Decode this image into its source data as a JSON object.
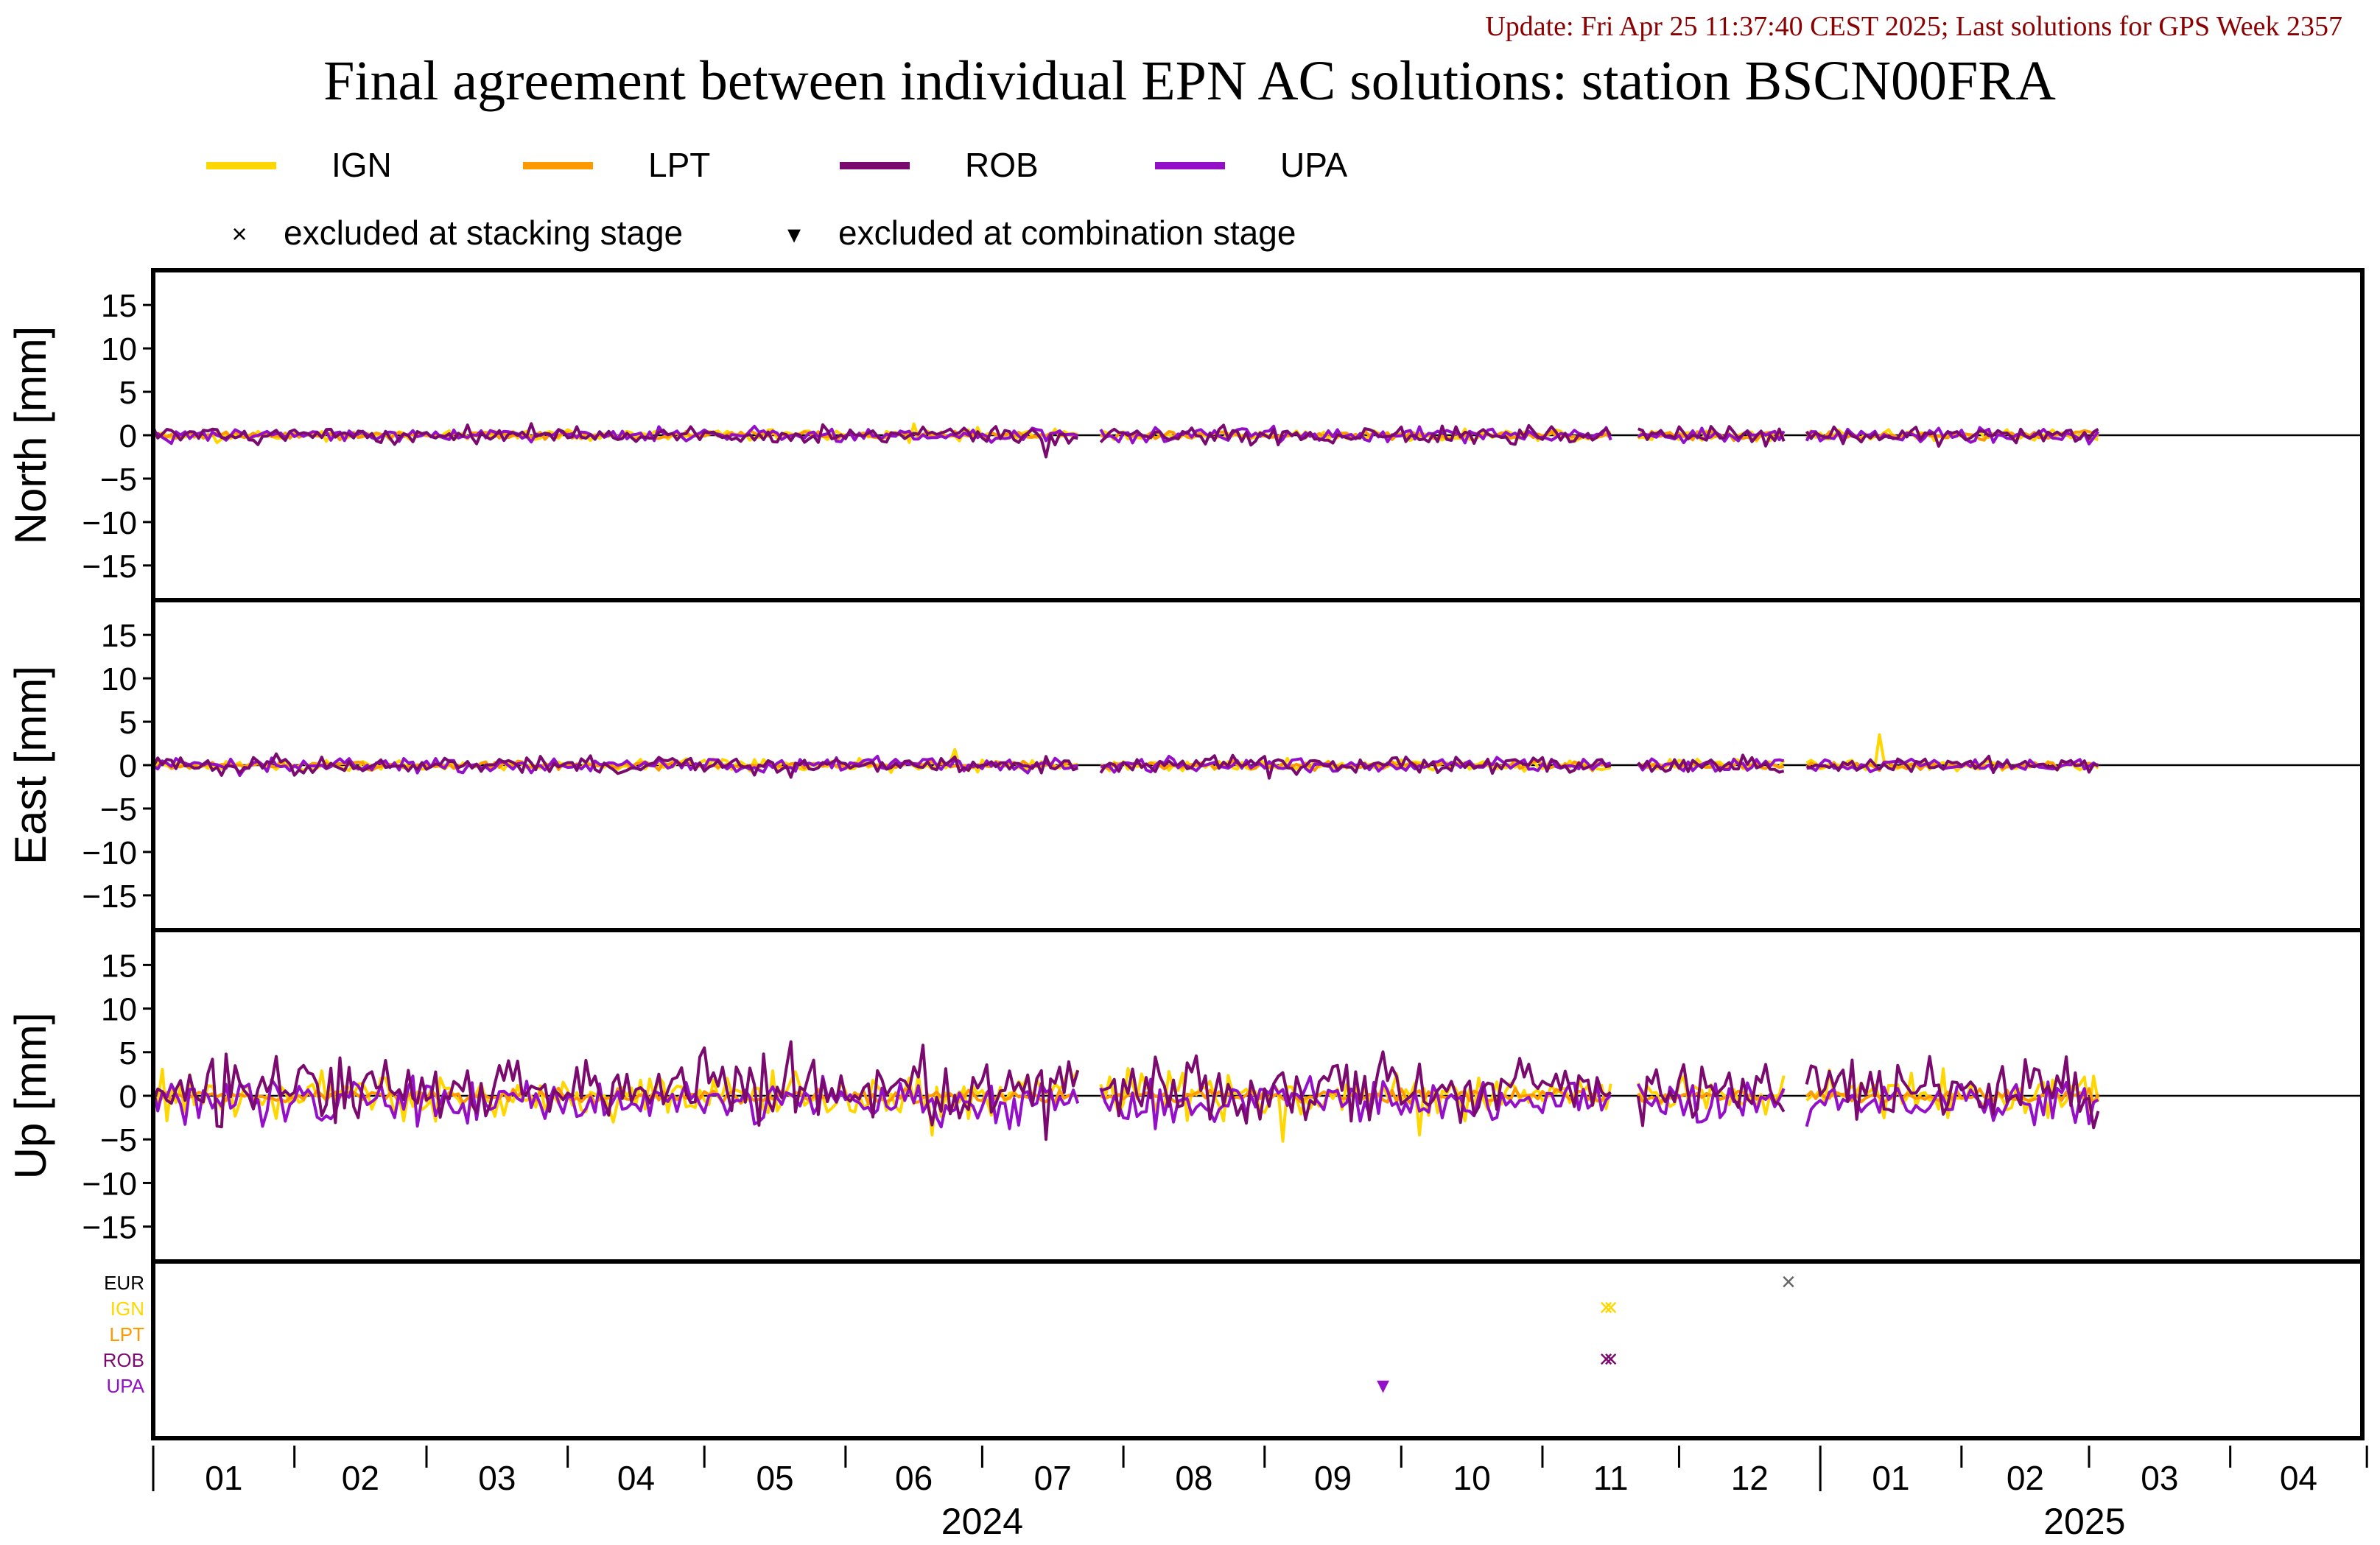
{
  "header": {
    "update_text": "Update: Fri Apr 25 11:37:40 CEST 2025; Last solutions for GPS Week 2357",
    "title": "Final agreement between individual EPN AC solutions: station BSCN00FRA"
  },
  "legend": {
    "series": [
      {
        "name": "IGN",
        "color": "#FFD700"
      },
      {
        "name": "LPT",
        "color": "#FF9900"
      },
      {
        "name": "ROB",
        "color": "#7A0A6E"
      },
      {
        "name": "UPA",
        "color": "#9410C8"
      }
    ],
    "markers": [
      {
        "symbol": "×",
        "label": "excluded at stacking stage"
      },
      {
        "symbol": "▾",
        "label": "excluded at combination stage"
      }
    ]
  },
  "colors": {
    "IGN": "#FFD700",
    "LPT": "#FF9900",
    "ROB": "#7A0A6E",
    "UPA": "#9410C8",
    "EUR": "#000000",
    "update_text": "#8B0000"
  },
  "chart_data": [
    {
      "type": "line",
      "panel": "north",
      "ylabel": "North [mm]",
      "ylim": [
        -19,
        19
      ],
      "yticks": [
        15,
        10,
        5,
        0,
        -5,
        -10,
        -15
      ],
      "x_range": [
        "2024-01-01",
        "2025-04-30"
      ],
      "gaps": [
        [
          "2024-07-23",
          "2024-07-26"
        ],
        [
          "2024-11-17",
          "2024-11-21"
        ],
        [
          "2024-12-25",
          "2024-12-28"
        ]
      ],
      "series": [
        {
          "name": "IGN",
          "noise_amplitude_mm": 0.4,
          "spikes": [
            [
              "2024-06-16",
              1.3
            ],
            [
              "2024-06-30",
              0.9
            ]
          ]
        },
        {
          "name": "LPT",
          "noise_amplitude_mm": 0.3,
          "spikes": []
        },
        {
          "name": "ROB",
          "noise_amplitude_mm": 0.6,
          "spikes": [
            [
              "2024-07-15",
              -2.5
            ],
            [
              "2024-12-12",
              1.0
            ]
          ]
        },
        {
          "name": "UPA",
          "noise_amplitude_mm": 0.5,
          "spikes": [
            [
              "2025-03-01",
              -1.0
            ]
          ]
        }
      ]
    },
    {
      "type": "line",
      "panel": "east",
      "ylabel": "East [mm]",
      "ylim": [
        -19,
        19
      ],
      "yticks": [
        15,
        10,
        5,
        0,
        -5,
        -10,
        -15
      ],
      "x_range": [
        "2024-01-01",
        "2025-04-30"
      ],
      "gaps": [
        [
          "2024-07-23",
          "2024-07-26"
        ],
        [
          "2024-11-17",
          "2024-11-21"
        ],
        [
          "2024-12-25",
          "2024-12-28"
        ]
      ],
      "series": [
        {
          "name": "IGN",
          "noise_amplitude_mm": 0.4,
          "spikes": [
            [
              "2024-06-25",
              1.8
            ],
            [
              "2025-01-14",
              3.5
            ]
          ]
        },
        {
          "name": "LPT",
          "noise_amplitude_mm": 0.3,
          "spikes": []
        },
        {
          "name": "ROB",
          "noise_amplitude_mm": 0.6,
          "spikes": [
            [
              "2024-05-20",
              -1.4
            ],
            [
              "2024-09-02",
              -1.5
            ]
          ]
        },
        {
          "name": "UPA",
          "noise_amplitude_mm": 0.5,
          "spikes": [
            [
              "2024-01-20",
              -1.2
            ]
          ]
        }
      ]
    },
    {
      "type": "line",
      "panel": "up",
      "ylabel": "Up [mm]",
      "ylim": [
        -19,
        19
      ],
      "yticks": [
        15,
        10,
        5,
        0,
        -5,
        -10,
        -15
      ],
      "x_range": [
        "2024-01-01",
        "2025-04-30"
      ],
      "gaps": [
        [
          "2024-07-23",
          "2024-07-26"
        ],
        [
          "2024-11-17",
          "2024-11-21"
        ],
        [
          "2024-12-25",
          "2024-12-28"
        ]
      ],
      "series": [
        {
          "name": "IGN",
          "noise_amplitude_mm": 1.6,
          "spikes": [
            [
              "2024-06-20",
              -4.5
            ],
            [
              "2024-07-20",
              3.5
            ],
            [
              "2024-09-05",
              -5.2
            ],
            [
              "2024-10-05",
              -4.5
            ]
          ]
        },
        {
          "name": "LPT",
          "noise_amplitude_mm": 0.5,
          "spikes": []
        },
        {
          "name": "ROB",
          "noise_amplitude_mm": 2.2,
          "spikes": [
            [
              "2024-05-01",
              5.5
            ],
            [
              "2024-05-20",
              6.2
            ],
            [
              "2024-06-18",
              5.8
            ],
            [
              "2024-07-15",
              -5.0
            ],
            [
              "2025-01-25",
              4.5
            ]
          ]
        },
        {
          "name": "UPA",
          "noise_amplitude_mm": 1.6,
          "spikes": [
            [
              "2024-01-25",
              -3.5
            ],
            [
              "2025-03-01",
              -3.2
            ]
          ]
        }
      ]
    },
    {
      "type": "scatter",
      "panel": "exclusions",
      "rows": [
        "EUR",
        "IGN",
        "LPT",
        "ROB",
        "UPA"
      ],
      "points": [
        {
          "row": "EUR",
          "date": "2024-12-25",
          "marker": "×"
        },
        {
          "row": "IGN",
          "date": "2024-11-15",
          "marker": "×"
        },
        {
          "row": "IGN",
          "date": "2024-11-16",
          "marker": "×"
        },
        {
          "row": "ROB",
          "date": "2024-11-15",
          "marker": "×"
        },
        {
          "row": "ROB",
          "date": "2024-11-16",
          "marker": "×"
        },
        {
          "row": "UPA",
          "date": "2024-09-27",
          "marker": "▾"
        }
      ]
    }
  ],
  "x_axis": {
    "month_labels": [
      "01",
      "02",
      "03",
      "04",
      "05",
      "06",
      "07",
      "08",
      "09",
      "10",
      "11",
      "12",
      "01",
      "02",
      "03",
      "04"
    ],
    "year_labels": [
      {
        "label": "2024",
        "center": "2024-07-01"
      },
      {
        "label": "2025",
        "center": "2025-02-28"
      }
    ]
  }
}
